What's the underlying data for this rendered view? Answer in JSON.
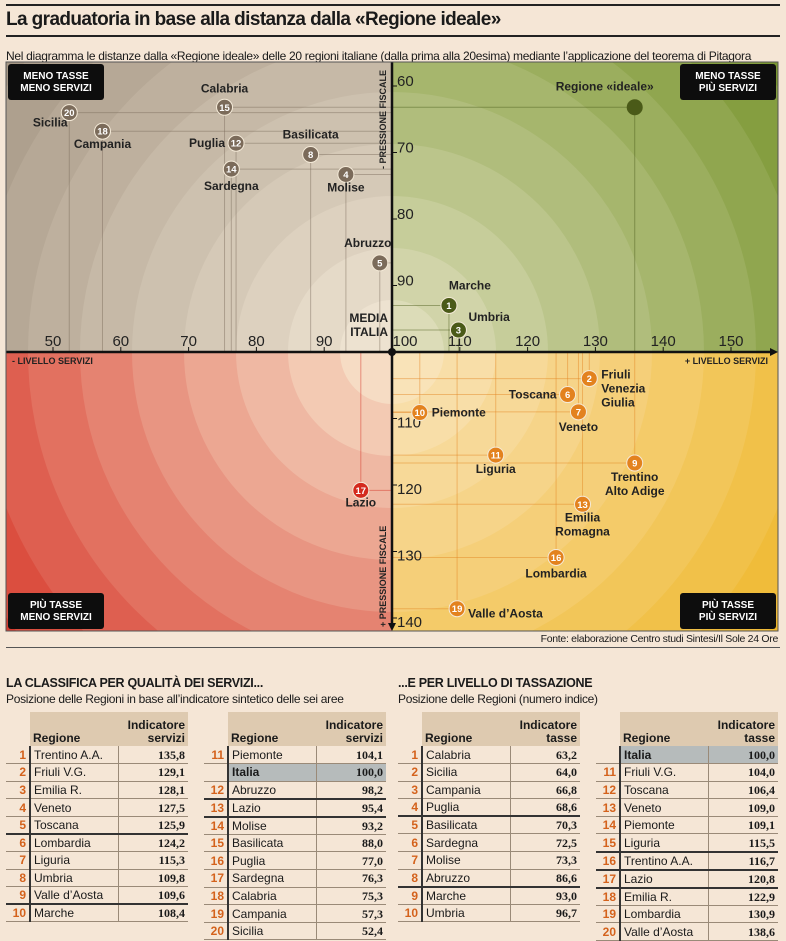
{
  "header": {
    "title": "La graduatoria in base alla distanza dalla «Regione ideale»",
    "subtitle": "Nel diagramma le distanze dalla «Regione ideale» delle 20 regioni italiane (dalla prima alla 20esima) mediante l’applicazione del teorema di Pitagora"
  },
  "chart_data": {
    "type": "scatter",
    "xlabel_minus": "- LIVELLO SERVIZI",
    "xlabel_plus": "+ LIVELLO SERVIZI",
    "ylabel_minus": "- PRESSIONE FISCALE",
    "ylabel_plus": "+ PRESSIONE FISCALE",
    "center_label": [
      "MEDIA",
      "ITALIA"
    ],
    "x_ticks": [
      50,
      60,
      70,
      80,
      90,
      100,
      110,
      120,
      130,
      140,
      150
    ],
    "y_ticks": [
      60,
      70,
      80,
      90,
      110,
      120,
      130,
      140
    ],
    "xlim": [
      43,
      157
    ],
    "ylim": [
      56,
      142
    ],
    "y_inverted": true,
    "quadrants": {
      "top_left": [
        "MENO TASSE",
        "MENO SERVIZI"
      ],
      "top_right": [
        "MENO TASSE",
        "PIÙ SERVIZI"
      ],
      "bottom_left": [
        "PIÙ TASSE",
        "MENO SERVIZI"
      ],
      "bottom_right": [
        "PIÙ TASSE",
        "PIÙ SERVIZI"
      ]
    },
    "colors": {
      "top_left": "#7b6b5a",
      "top_right": "#4a5a18",
      "bottom_left": "#d42a1e",
      "bottom_right": "#e3821e"
    },
    "ideal": {
      "label": "Regione «ideale»",
      "x": 135.8,
      "y": 63.2
    },
    "points": [
      {
        "rank": 1,
        "label": [
          "Marche"
        ],
        "x": 108.4,
        "y": 93.0
      },
      {
        "rank": 2,
        "label": [
          "Friuli",
          "Venezia",
          "Giulia"
        ],
        "x": 129.1,
        "y": 104.0
      },
      {
        "rank": 3,
        "label": [
          "Umbria"
        ],
        "x": 109.8,
        "y": 96.7
      },
      {
        "rank": 4,
        "label": [
          "Molise"
        ],
        "x": 93.2,
        "y": 73.3
      },
      {
        "rank": 5,
        "label": [
          "Abruzzo"
        ],
        "x": 98.2,
        "y": 86.6
      },
      {
        "rank": 6,
        "label": [
          "Toscana"
        ],
        "x": 125.9,
        "y": 106.4
      },
      {
        "rank": 7,
        "label": [
          "Veneto"
        ],
        "x": 127.5,
        "y": 109.0
      },
      {
        "rank": 8,
        "label": [
          "Basilicata"
        ],
        "x": 88.0,
        "y": 70.3
      },
      {
        "rank": 9,
        "label": [
          "Trentino",
          "Alto Adige"
        ],
        "x": 135.8,
        "y": 116.7
      },
      {
        "rank": 10,
        "label": [
          "Piemonte"
        ],
        "x": 104.1,
        "y": 109.1
      },
      {
        "rank": 11,
        "label": [
          "Liguria"
        ],
        "x": 115.3,
        "y": 115.5
      },
      {
        "rank": 12,
        "label": [
          "Puglia"
        ],
        "x": 77.0,
        "y": 68.6
      },
      {
        "rank": 13,
        "label": [
          "Emilia",
          "Romagna"
        ],
        "x": 128.1,
        "y": 122.9
      },
      {
        "rank": 14,
        "label": [
          "Sardegna"
        ],
        "x": 76.3,
        "y": 72.5
      },
      {
        "rank": 15,
        "label": [
          "Calabria"
        ],
        "x": 75.3,
        "y": 63.2
      },
      {
        "rank": 16,
        "label": [
          "Lombardia"
        ],
        "x": 124.2,
        "y": 130.9
      },
      {
        "rank": 17,
        "label": [
          "Lazio"
        ],
        "x": 95.4,
        "y": 120.8
      },
      {
        "rank": 18,
        "label": [
          "Campania"
        ],
        "x": 57.3,
        "y": 66.8
      },
      {
        "rank": 19,
        "label": [
          "Valle d’Aosta"
        ],
        "x": 109.6,
        "y": 138.6
      },
      {
        "rank": 20,
        "label": [
          "Sicilia"
        ],
        "x": 52.4,
        "y": 64.0
      }
    ]
  },
  "source": "Fonte: elaborazione Centro studi Sintesi/Il Sole 24 Ore",
  "services": {
    "title": "LA CLASSIFICA PER QUALITÀ DEI SERVIZI...",
    "subtitle": "Posizione delle Regioni in base all’indicatore sintetico delle sei aree",
    "col_region": "Regione",
    "col_value": "Indicatore servizi",
    "left": [
      [
        "1",
        "Trentino A.A.",
        "135,8"
      ],
      [
        "2",
        "Friuli V.G.",
        "129,1"
      ],
      [
        "3",
        "Emilia R.",
        "128,1"
      ],
      [
        "4",
        "Veneto",
        "127,5"
      ],
      [
        "5",
        "Toscana",
        "125,9"
      ],
      [
        "6",
        "Lombardia",
        "124,2"
      ],
      [
        "7",
        "Liguria",
        "115,3"
      ],
      [
        "8",
        "Umbria",
        "109,8"
      ],
      [
        "9",
        "Valle d’Aosta",
        "109,6"
      ],
      [
        "10",
        "Marche",
        "108,4"
      ]
    ],
    "right": [
      [
        "11",
        "Piemonte",
        "104,1"
      ],
      [
        "",
        "Italia",
        "100,0"
      ],
      [
        "12",
        "Abruzzo",
        "98,2"
      ],
      [
        "13",
        "Lazio",
        "95,4"
      ],
      [
        "14",
        "Molise",
        "93,2"
      ],
      [
        "15",
        "Basilicata",
        "88,0"
      ],
      [
        "16",
        "Puglia",
        "77,0"
      ],
      [
        "17",
        "Sardegna",
        "76,3"
      ],
      [
        "18",
        "Calabria",
        "75,3"
      ],
      [
        "19",
        "Campania",
        "57,3"
      ],
      [
        "20",
        "Sicilia",
        "52,4"
      ]
    ]
  },
  "taxes": {
    "title": "...E PER LIVELLO DI TASSAZIONE",
    "subtitle": "Posizione delle Regioni (numero indice)",
    "col_region": "Regione",
    "col_value": "Indicatore tasse",
    "left": [
      [
        "1",
        "Calabria",
        "63,2"
      ],
      [
        "2",
        "Sicilia",
        "64,0"
      ],
      [
        "3",
        "Campania",
        "66,8"
      ],
      [
        "4",
        "Puglia",
        "68,6"
      ],
      [
        "5",
        "Basilicata",
        "70,3"
      ],
      [
        "6",
        "Sardegna",
        "72,5"
      ],
      [
        "7",
        "Molise",
        "73,3"
      ],
      [
        "8",
        "Abruzzo",
        "86,6"
      ],
      [
        "9",
        "Marche",
        "93,0"
      ],
      [
        "10",
        "Umbria",
        "96,7"
      ]
    ],
    "right": [
      [
        "",
        "Italia",
        "100,0"
      ],
      [
        "11",
        "Friuli V.G.",
        "104,0"
      ],
      [
        "12",
        "Toscana",
        "106,4"
      ],
      [
        "13",
        "Veneto",
        "109,0"
      ],
      [
        "14",
        "Piemonte",
        "109,1"
      ],
      [
        "15",
        "Liguria",
        "115,5"
      ],
      [
        "16",
        "Trentino A.A.",
        "116,7"
      ],
      [
        "17",
        "Lazio",
        "120,8"
      ],
      [
        "18",
        "Emilia R.",
        "122,9"
      ],
      [
        "19",
        "Lombardia",
        "130,9"
      ],
      [
        "20",
        "Valle d’Aosta",
        "138,6"
      ]
    ]
  }
}
